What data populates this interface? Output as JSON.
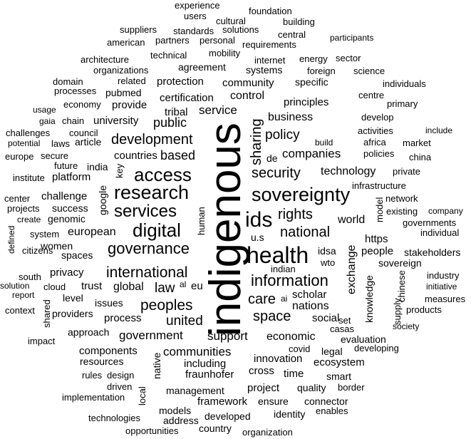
{
  "words": [
    "indigenous",
    "health",
    "sovereignty",
    "research",
    "access",
    "services",
    "digital",
    "ids",
    "governance",
    "international",
    "information",
    "security",
    "development",
    "rights",
    "national",
    "companies",
    "policy",
    "sharing",
    "care",
    "space",
    "peoples",
    "united",
    "law",
    "public",
    "service",
    "communities",
    "government",
    "support",
    "based",
    "countries",
    "business",
    "technology",
    "world",
    "economic",
    "nations",
    "people",
    "global",
    "scholar",
    "exchange",
    "social",
    "innovation",
    "experience",
    "users",
    "cultural",
    "foundation",
    "building",
    "suppliers",
    "standards",
    "solutions",
    "central",
    "participants",
    "american",
    "partners",
    "personal",
    "requirements",
    "architecture",
    "technical",
    "mobility",
    "internet",
    "energy",
    "sector",
    "organizations",
    "agreement",
    "systems",
    "foreign",
    "science",
    "domain",
    "related",
    "protection",
    "community",
    "specific",
    "individuals",
    "processes",
    "pubmed",
    "control",
    "centre",
    "usage",
    "economy",
    "provide",
    "certification",
    "principles",
    "primary",
    "gaia",
    "chain",
    "university",
    "tribal",
    "develop",
    "challenges",
    "council",
    "include",
    "potential",
    "laws",
    "article",
    "activities",
    "build",
    "africa",
    "market",
    "europe",
    "secure",
    "policies",
    "de",
    "china",
    "future",
    "india",
    "institute",
    "platform",
    "key",
    "private",
    "infrastructure",
    "center",
    "challenge",
    "google",
    "network",
    "projects",
    "success",
    "human",
    "existing",
    "company",
    "defined",
    "create",
    "genomic",
    "model",
    "governments",
    "system",
    "european",
    "u.s",
    "https",
    "individual",
    "citizens",
    "women",
    "idsa",
    "stakeholders",
    "spaces",
    "wto",
    "sovereign",
    "south",
    "privacy",
    "indian",
    "industry",
    "solution",
    "cloud",
    "trust",
    "al",
    "eu",
    "initiative",
    "report",
    "level",
    "ai",
    "chinese",
    "measures",
    "context",
    "providers",
    "issues",
    "knowledge",
    "supply",
    "products",
    "shared",
    "process",
    "set",
    "society",
    "impact",
    "approach",
    "casas",
    "evaluation",
    "components",
    "covid",
    "legal",
    "developing",
    "resources",
    "including",
    "native",
    "ecosystem",
    "rules",
    "design",
    "fraunhofer",
    "cross",
    "smart",
    "driven",
    "implementation",
    "local",
    "management",
    "time",
    "quality",
    "border",
    "framework",
    "ensure",
    "project",
    "connector",
    "technologies",
    "models",
    "developed",
    "identity",
    "enables",
    "address",
    "country",
    "opportunities",
    "organization"
  ]
}
